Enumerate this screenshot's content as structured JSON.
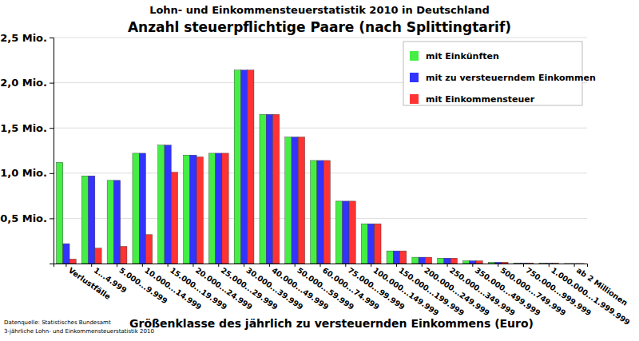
{
  "chart_data": {
    "type": "bar",
    "title": "Lohn- und Einkommensteuerstatistik 2010 in Deutschland",
    "subtitle": "Anzahl steuerpflichtige Paare (nach Splittingtarif)",
    "x_label": "Größenklasse des jährlich zu versteuernden Einkommens (Euro)",
    "annotations": [
      "Datenquelle: Statistisches Bundesamt",
      "3-jährliche Lohn- und Einkommensteuerstatistik 2010"
    ],
    "categories": [
      "Verlustfälle",
      "1...4.999",
      "5.000...9.999",
      "10.000...14.999",
      "15.000...19.999",
      "20.000...24.999",
      "25.000...29.999",
      "30.000...39.999",
      "40.000...49.999",
      "50.000...59.999",
      "60.000...74.999",
      "75.000...99.999",
      "100.000...149.999",
      "150.000...199.999",
      "200.000...249.999",
      "250.000...349.999",
      "350.000...499.999",
      "500.000...749.999",
      "750.000...999.999",
      "1.000.000...1.999.999",
      "ab 2 Millionen"
    ],
    "series": [
      {
        "name": "mit Einkünften",
        "color": "#44ee44",
        "values": [
          1.12,
          0.97,
          0.92,
          1.22,
          1.31,
          1.2,
          1.22,
          2.14,
          1.65,
          1.4,
          1.14,
          0.69,
          0.44,
          0.14,
          0.07,
          0.06,
          0.03,
          0.015,
          0.005,
          0.003,
          0.001
        ]
      },
      {
        "name": "mit zu versteuerndem Einkommen",
        "color": "#3333ff",
        "values": [
          0.22,
          0.97,
          0.92,
          1.22,
          1.31,
          1.2,
          1.22,
          2.14,
          1.65,
          1.4,
          1.14,
          0.69,
          0.44,
          0.14,
          0.07,
          0.06,
          0.03,
          0.015,
          0.005,
          0.003,
          0.001
        ]
      },
      {
        "name": "mit Einkommensteuer",
        "color": "#ff3333",
        "values": [
          0.05,
          0.17,
          0.19,
          0.32,
          1.01,
          1.18,
          1.22,
          2.14,
          1.65,
          1.4,
          1.14,
          0.69,
          0.44,
          0.14,
          0.07,
          0.06,
          0.03,
          0.015,
          0.005,
          0.003,
          0.001
        ]
      }
    ],
    "ylim": [
      0,
      2.5
    ],
    "yticks": [
      {
        "value": 0.5,
        "label": "0,5 Mio."
      },
      {
        "value": 1.0,
        "label": "1,0 Mio."
      },
      {
        "value": 1.5,
        "label": "1,5 Mio."
      },
      {
        "value": 2.0,
        "label": "2,0 Mio."
      },
      {
        "value": 2.5,
        "label": "2,5 Mio."
      }
    ],
    "grid": true,
    "legend": "upper right"
  }
}
